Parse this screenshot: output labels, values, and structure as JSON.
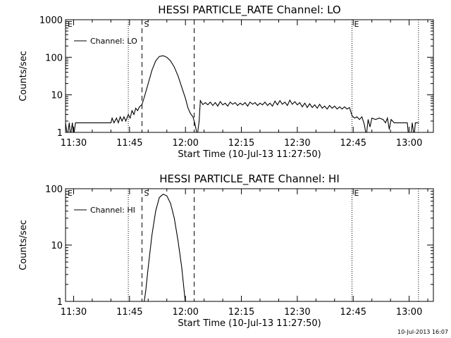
{
  "footer": {
    "timestamp": "10-Jul-2013 16:07"
  },
  "chart_data": [
    {
      "type": "line",
      "title": "HESSI PARTICLE_RATE Channel: LO",
      "xlabel": "Start Time (10-Jul-13 11:27:50)",
      "ylabel": "Counts/sec",
      "yscale": "log",
      "ylim": [
        1,
        1000
      ],
      "xlim": [
        "11:27:50",
        "13:06:30"
      ],
      "x_ticks": [
        "11:30",
        "11:45",
        "12:00",
        "12:15",
        "12:30",
        "12:45",
        "13:00"
      ],
      "y_ticks": [
        "1",
        "10",
        "100",
        "1000"
      ],
      "legend": {
        "position": "top-left",
        "entries": [
          "Channel: LO"
        ]
      },
      "markers": [
        {
          "label": "E",
          "time": "11:27:50",
          "style": "dotted"
        },
        {
          "label": "",
          "time": "11:44:40",
          "style": "dotted"
        },
        {
          "label": "S",
          "time": "11:48:20",
          "style": "dashed"
        },
        {
          "label": "",
          "time": "12:02:20",
          "style": "dashed"
        },
        {
          "label": "E",
          "time": "12:44:40",
          "style": "dotted"
        },
        {
          "label": "",
          "time": "13:02:30",
          "style": "dotted"
        }
      ],
      "series": [
        {
          "name": "Channel: LO",
          "points": [
            [
              "11:27:50",
              1.8
            ],
            [
              "11:28:20",
              0.8
            ],
            [
              "11:28:50",
              1.8
            ],
            [
              "11:29:10",
              0.8
            ],
            [
              "11:29:40",
              1.8
            ],
            [
              "11:30:00",
              0.8
            ],
            [
              "11:30:30",
              1.8
            ],
            [
              "11:32:00",
              1.8
            ],
            [
              "11:36:00",
              1.8
            ],
            [
              "11:40:00",
              1.8
            ],
            [
              "11:40:20",
              2.4
            ],
            [
              "11:40:50",
              1.8
            ],
            [
              "11:41:30",
              2.4
            ],
            [
              "11:42:00",
              1.8
            ],
            [
              "11:42:30",
              2.6
            ],
            [
              "11:43:00",
              2.0
            ],
            [
              "11:43:30",
              2.6
            ],
            [
              "11:44:00",
              2.0
            ],
            [
              "11:44:40",
              3.0
            ],
            [
              "11:45:10",
              2.4
            ],
            [
              "11:45:40",
              3.8
            ],
            [
              "11:46:10",
              3.0
            ],
            [
              "11:46:40",
              4.4
            ],
            [
              "11:47:10",
              3.8
            ],
            [
              "11:47:40",
              4.8
            ],
            [
              "11:48:20",
              5.5
            ],
            [
              "11:49:00",
              9
            ],
            [
              "11:50:00",
              20
            ],
            [
              "11:51:00",
              45
            ],
            [
              "11:52:00",
              80
            ],
            [
              "11:53:00",
              105
            ],
            [
              "11:54:00",
              110
            ],
            [
              "11:55:00",
              100
            ],
            [
              "11:56:00",
              80
            ],
            [
              "11:57:00",
              55
            ],
            [
              "11:58:00",
              32
            ],
            [
              "11:59:00",
              16
            ],
            [
              "12:00:00",
              8
            ],
            [
              "12:00:40",
              4.5
            ],
            [
              "12:01:20",
              3.2
            ],
            [
              "12:02:00",
              2.6
            ],
            [
              "12:02:40",
              1.5
            ],
            [
              "12:03:10",
              0.8
            ],
            [
              "12:03:40",
              2.0
            ],
            [
              "12:04:00",
              7
            ],
            [
              "12:04:40",
              5.5
            ],
            [
              "12:05:20",
              6.2
            ],
            [
              "12:06:00",
              5.4
            ],
            [
              "12:06:40",
              6.4
            ],
            [
              "12:07:20",
              5.2
            ],
            [
              "12:08:00",
              6.2
            ],
            [
              "12:08:40",
              5.0
            ],
            [
              "12:09:20",
              6.6
            ],
            [
              "12:10:00",
              5.4
            ],
            [
              "12:10:40",
              6.0
            ],
            [
              "12:11:20",
              5.0
            ],
            [
              "12:12:00",
              6.4
            ],
            [
              "12:12:40",
              5.6
            ],
            [
              "12:13:20",
              6.2
            ],
            [
              "12:14:00",
              5.2
            ],
            [
              "12:14:40",
              6.0
            ],
            [
              "12:15:20",
              5.4
            ],
            [
              "12:16:00",
              6.2
            ],
            [
              "12:16:40",
              5.0
            ],
            [
              "12:17:20",
              6.4
            ],
            [
              "12:18:00",
              5.6
            ],
            [
              "12:18:40",
              6.2
            ],
            [
              "12:19:20",
              5.2
            ],
            [
              "12:20:00",
              6.0
            ],
            [
              "12:20:40",
              5.4
            ],
            [
              "12:21:20",
              6.4
            ],
            [
              "12:22:00",
              5.2
            ],
            [
              "12:22:40",
              6.0
            ],
            [
              "12:23:20",
              5.0
            ],
            [
              "12:24:00",
              6.8
            ],
            [
              "12:24:40",
              5.4
            ],
            [
              "12:25:20",
              7.0
            ],
            [
              "12:26:00",
              5.6
            ],
            [
              "12:26:40",
              6.4
            ],
            [
              "12:27:20",
              5.2
            ],
            [
              "12:28:00",
              7.2
            ],
            [
              "12:28:40",
              5.6
            ],
            [
              "12:29:20",
              6.6
            ],
            [
              "12:30:00",
              5.4
            ],
            [
              "12:30:40",
              6.2
            ],
            [
              "12:31:20",
              4.8
            ],
            [
              "12:32:00",
              6.0
            ],
            [
              "12:32:40",
              4.6
            ],
            [
              "12:33:20",
              5.8
            ],
            [
              "12:34:00",
              4.6
            ],
            [
              "12:34:40",
              5.4
            ],
            [
              "12:35:20",
              4.4
            ],
            [
              "12:36:00",
              5.6
            ],
            [
              "12:36:40",
              4.4
            ],
            [
              "12:37:20",
              5.0
            ],
            [
              "12:38:00",
              4.2
            ],
            [
              "12:38:40",
              5.2
            ],
            [
              "12:39:20",
              4.4
            ],
            [
              "12:40:00",
              5.0
            ],
            [
              "12:40:40",
              4.2
            ],
            [
              "12:41:20",
              4.8
            ],
            [
              "12:42:00",
              4.2
            ],
            [
              "12:42:40",
              4.8
            ],
            [
              "12:43:20",
              4.2
            ],
            [
              "12:44:00",
              4.6
            ],
            [
              "12:44:40",
              2.8
            ],
            [
              "12:45:20",
              2.4
            ],
            [
              "12:46:00",
              2.6
            ],
            [
              "12:46:40",
              2.2
            ],
            [
              "12:47:20",
              2.6
            ],
            [
              "12:48:00",
              1.6
            ],
            [
              "12:48:30",
              0.8
            ],
            [
              "12:49:00",
              2.2
            ],
            [
              "12:49:30",
              1.4
            ],
            [
              "12:50:00",
              2.4
            ],
            [
              "12:51:00",
              2.2
            ],
            [
              "12:52:00",
              2.4
            ],
            [
              "12:53:00",
              2.2
            ],
            [
              "12:53:40",
              1.8
            ],
            [
              "12:54:10",
              2.4
            ],
            [
              "12:54:40",
              1.2
            ],
            [
              "12:55:10",
              2.2
            ],
            [
              "12:56:00",
              1.8
            ],
            [
              "12:58:00",
              1.8
            ],
            [
              "12:59:30",
              1.8
            ],
            [
              "12:59:50",
              0.8
            ],
            [
              "13:00:30",
              0.8
            ],
            [
              "13:00:50",
              1.8
            ],
            [
              "13:01:20",
              0.8
            ],
            [
              "13:01:40",
              1.8
            ],
            [
              "13:02:30",
              1.8
            ]
          ]
        }
      ]
    },
    {
      "type": "line",
      "title": "HESSI PARTICLE_RATE Channel: HI",
      "xlabel": "Start Time (10-Jul-13 11:27:50)",
      "ylabel": "Counts/sec",
      "yscale": "log",
      "ylim": [
        1,
        100
      ],
      "xlim": [
        "11:27:50",
        "13:06:30"
      ],
      "x_ticks": [
        "11:30",
        "11:45",
        "12:00",
        "12:15",
        "12:30",
        "12:45",
        "13:00"
      ],
      "y_ticks": [
        "1",
        "10",
        "100"
      ],
      "legend": {
        "position": "top-left",
        "entries": [
          "Channel: HI"
        ]
      },
      "markers": [
        {
          "label": "E",
          "time": "11:27:50",
          "style": "dotted"
        },
        {
          "label": "",
          "time": "11:44:40",
          "style": "dotted"
        },
        {
          "label": "S",
          "time": "11:48:20",
          "style": "dashed"
        },
        {
          "label": "",
          "time": "12:02:20",
          "style": "dashed"
        },
        {
          "label": "E",
          "time": "12:44:40",
          "style": "dotted"
        },
        {
          "label": "",
          "time": "13:02:30",
          "style": "dotted"
        }
      ],
      "series": [
        {
          "name": "Channel: HI",
          "points": [
            [
              "11:48:50",
              0.9
            ],
            [
              "11:49:20",
              1.5
            ],
            [
              "11:50:00",
              4
            ],
            [
              "11:51:00",
              15
            ],
            [
              "11:52:00",
              40
            ],
            [
              "11:53:00",
              70
            ],
            [
              "11:54:00",
              80
            ],
            [
              "11:55:00",
              75
            ],
            [
              "11:56:00",
              55
            ],
            [
              "11:57:00",
              30
            ],
            [
              "11:58:00",
              12
            ],
            [
              "11:59:00",
              4
            ],
            [
              "11:59:40",
              1.5
            ],
            [
              "12:00:00",
              0.9
            ]
          ]
        }
      ]
    }
  ]
}
